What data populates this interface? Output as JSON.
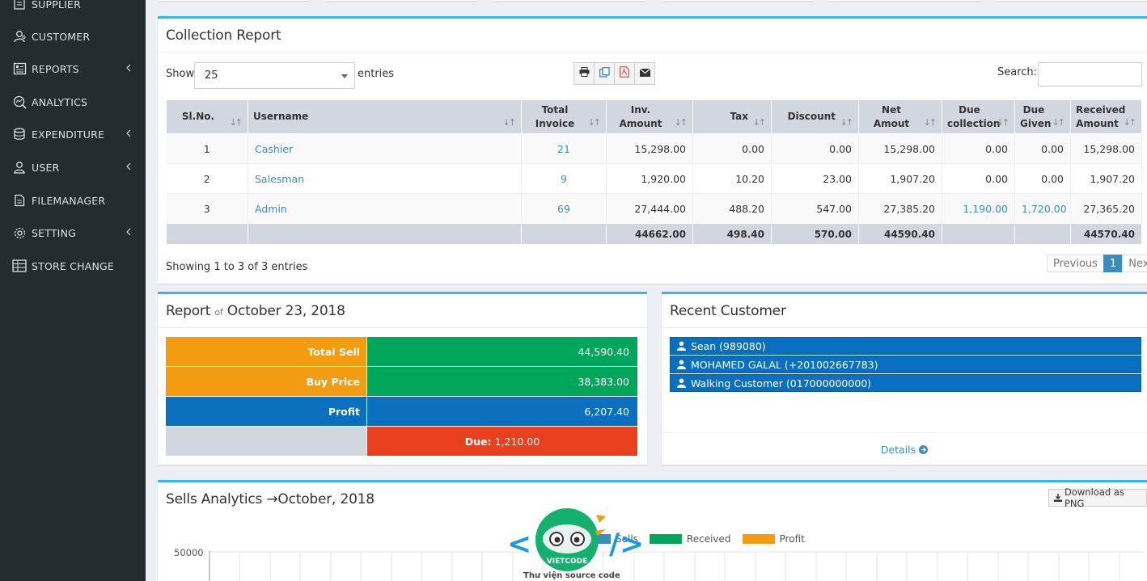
{
  "sidebar": {
    "items": [
      {
        "label": "SUPPLIER",
        "icon": "supplier-icon",
        "chevron": false
      },
      {
        "label": "CUSTOMER",
        "icon": "customer-icon",
        "chevron": false
      },
      {
        "label": "REPORTS",
        "icon": "reports-icon",
        "chevron": true
      },
      {
        "label": "ANALYTICS",
        "icon": "analytics-icon",
        "chevron": false
      },
      {
        "label": "EXPENDITURE",
        "icon": "expenditure-icon",
        "chevron": true
      },
      {
        "label": "USER",
        "icon": "user-icon",
        "chevron": true
      },
      {
        "label": "FILEMANAGER",
        "icon": "filemanager-icon",
        "chevron": false
      },
      {
        "label": "SETTING",
        "icon": "setting-icon",
        "chevron": true
      },
      {
        "label": "STORE CHANGE",
        "icon": "store-change-icon",
        "chevron": false
      }
    ]
  },
  "collection": {
    "title": "Collection Report",
    "show_label": "Show",
    "entries_value": "25",
    "entries_label": "entries",
    "search_label": "Search:",
    "search_value": "",
    "headers": [
      "Sl.No.",
      "Username",
      "Total Invoice",
      "Inv. Amount",
      "Tax",
      "Discount",
      "Net Amout",
      "Due collection",
      "Due Given",
      "Received Amount"
    ],
    "rows": [
      {
        "sl": "1",
        "user": "Cashier",
        "invoices": "21",
        "inv_amount": "15,298.00",
        "tax": "0.00",
        "discount": "0.00",
        "net": "15,298.00",
        "due_collection": "0.00",
        "due_given": "0.00",
        "received": "15,298.00"
      },
      {
        "sl": "2",
        "user": "Salesman",
        "invoices": "9",
        "inv_amount": "1,920.00",
        "tax": "10.20",
        "discount": "23.00",
        "net": "1,907.20",
        "due_collection": "0.00",
        "due_given": "0.00",
        "received": "1,907.20"
      },
      {
        "sl": "3",
        "user": "Admin",
        "invoices": "69",
        "inv_amount": "27,444.00",
        "tax": "488.20",
        "discount": "547.00",
        "net": "27,385.20",
        "due_collection": "1,190.00",
        "due_given": "1,720.00",
        "received": "27,365.20"
      }
    ],
    "totals": {
      "inv_amount": "44662.00",
      "tax": "498.40",
      "discount": "570.00",
      "net": "44590.40",
      "received": "44570.40"
    },
    "info": "Showing 1 to 3 of 3 entries",
    "pager": {
      "prev": "Previous",
      "page": "1",
      "next": "Next"
    }
  },
  "report": {
    "title_prefix": "Report",
    "title_of": "of",
    "title_date": "October 23, 2018",
    "rows": [
      {
        "key": "Total Sell",
        "value": "44,590.40"
      },
      {
        "key": "Buy Price",
        "value": "38,383.00"
      },
      {
        "key": "Profit",
        "value": "6,207.40"
      }
    ],
    "due_label": "Due:",
    "due_value": "1,210.00",
    "colors": {
      "orange": "#f39c12",
      "green": "#00a65a",
      "blue": "#0a6fbf",
      "red": "#e8401c",
      "gray": "#d2d6de"
    }
  },
  "recent": {
    "title": "Recent Customer",
    "customers": [
      "Sean (989080)",
      "MOHAMED GALAL (+201002667783)",
      "Walking Customer (017000000000)"
    ],
    "details": "Details"
  },
  "analytics": {
    "title_prefix": "Sells Analytics",
    "arrow": "→",
    "title_month": "October, 2018",
    "download": "Download as PNG",
    "legend": [
      {
        "name": "Sells",
        "color": "#3c8dbc"
      },
      {
        "name": "Received",
        "color": "#00a65a"
      },
      {
        "name": "Profit",
        "color": "#f39c12"
      }
    ],
    "y_tick": "50000"
  },
  "watermark": {
    "brand": "VIETCODE",
    "caption": "Thư viện source code"
  }
}
